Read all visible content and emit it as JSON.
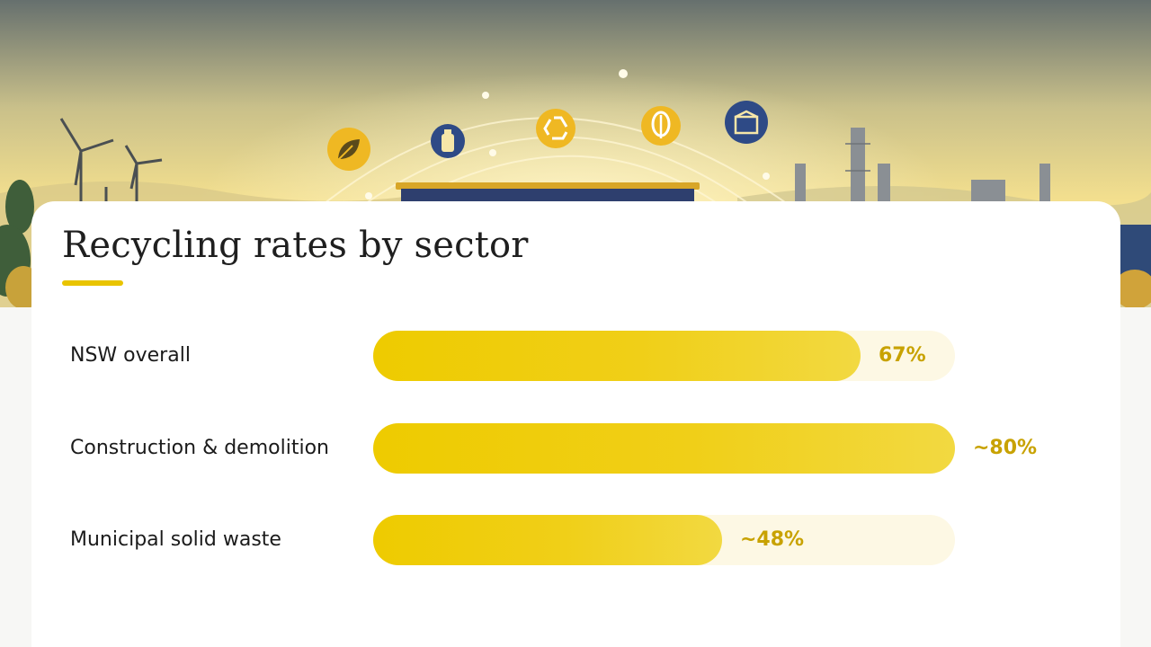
{
  "chart_data": {
    "type": "bar",
    "orientation": "horizontal",
    "title": "Recycling rates by sector",
    "categories": [
      "NSW overall",
      "Construction & demolition",
      "Municipal solid waste"
    ],
    "values": [
      67,
      80,
      48
    ],
    "value_labels": [
      "67%",
      "~80%",
      "~48%"
    ],
    "xlim": [
      0,
      80
    ],
    "grid": false,
    "legend": "none"
  },
  "colors": {
    "accent": "#eecb00",
    "track": "#fdf8e4",
    "value_text": "#c8a200",
    "title_text": "#1f1f1f"
  },
  "hero_icons": [
    "leaf-icon",
    "bottle-icon",
    "recycle-icon",
    "sprout-icon",
    "box-icon"
  ]
}
